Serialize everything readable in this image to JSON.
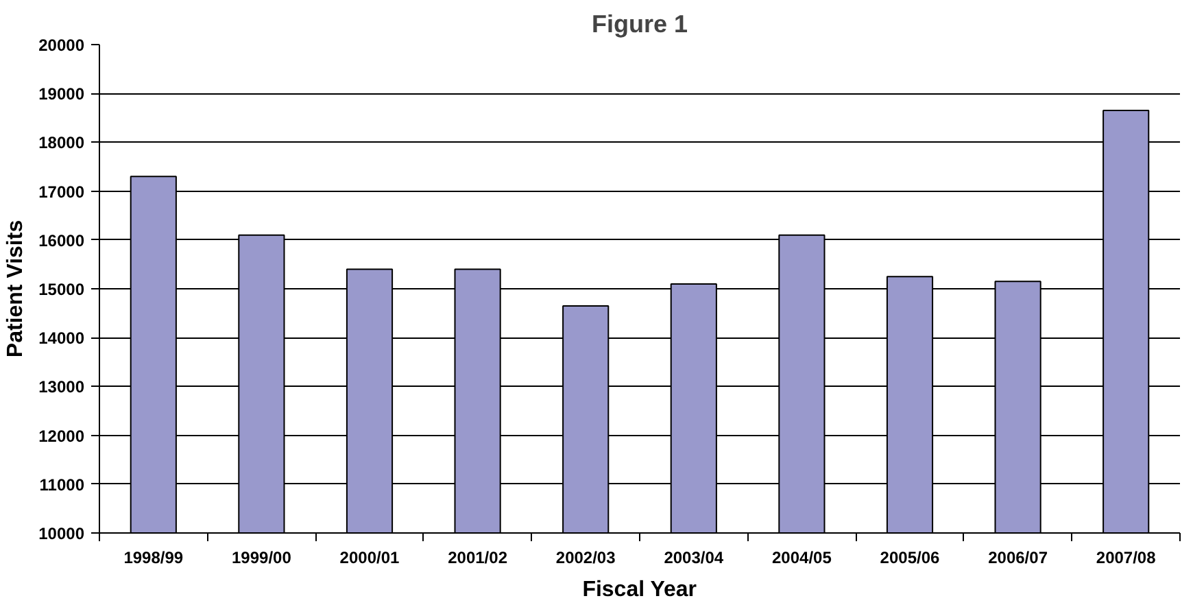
{
  "chart_data": {
    "type": "bar",
    "title": "Figure 1",
    "xlabel": "Fiscal Year",
    "ylabel": "Patient Visits",
    "categories": [
      "1998/99",
      "1999/00",
      "2000/01",
      "2001/02",
      "2002/03",
      "2003/04",
      "2004/05",
      "2005/06",
      "2006/07",
      "2007/08"
    ],
    "values": [
      17300,
      16100,
      15400,
      15400,
      14650,
      15100,
      16100,
      15250,
      15150,
      18650
    ],
    "color": "#9999cc",
    "ylim": [
      10000,
      20000
    ],
    "yticks": [
      10000,
      11000,
      12000,
      13000,
      14000,
      15000,
      16000,
      17000,
      18000,
      19000,
      20000
    ],
    "grid": "y"
  }
}
